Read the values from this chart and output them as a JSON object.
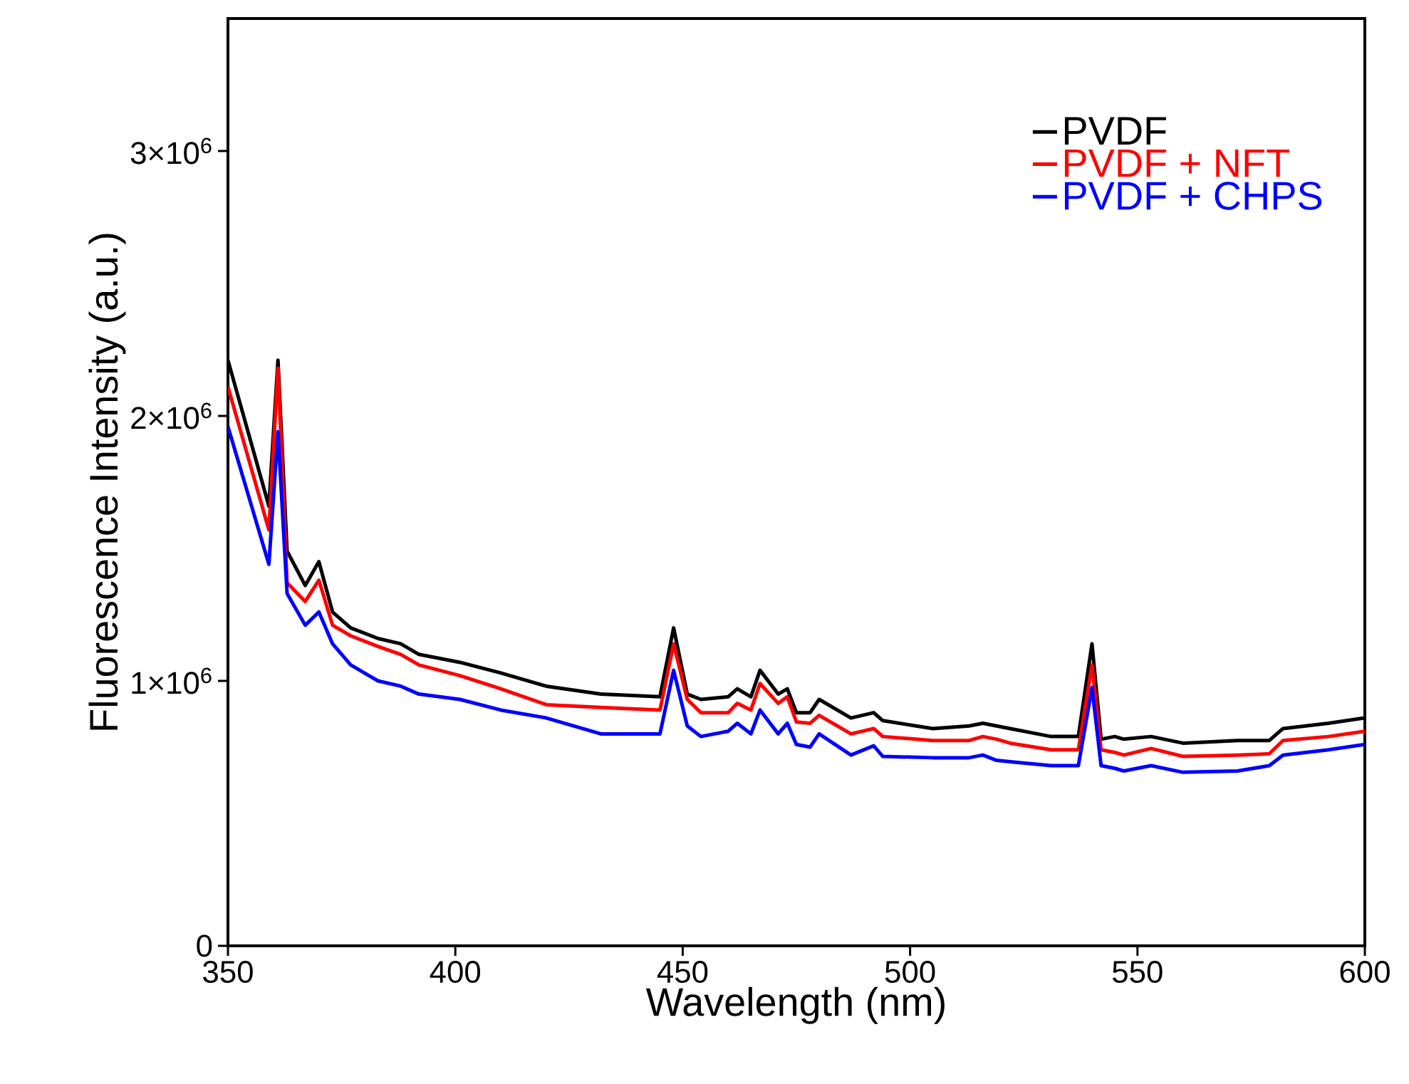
{
  "chart_data": {
    "type": "line",
    "xlabel": "Wavelength (nm)",
    "ylabel": "Fluorescence Intensity (a.u.)",
    "x": [
      350,
      359,
      361,
      363,
      367,
      370,
      373,
      377,
      383,
      388,
      392,
      401,
      410,
      420,
      432,
      445,
      448,
      451,
      454,
      460,
      462,
      465,
      467,
      471,
      473,
      475,
      478,
      480,
      487,
      492,
      494,
      505,
      513,
      516,
      519,
      522,
      531,
      537,
      540,
      542,
      545,
      547,
      553,
      560,
      572,
      579,
      582,
      592,
      600
    ],
    "series": [
      {
        "name": "PVDF",
        "color": "#000000",
        "values": [
          2210000,
          1660000,
          2210000,
          1490000,
          1360000,
          1450000,
          1260000,
          1200000,
          1160000,
          1140000,
          1100000,
          1070000,
          1030000,
          980000,
          950000,
          940000,
          1200000,
          950000,
          930000,
          940000,
          970000,
          940000,
          1040000,
          950000,
          970000,
          880000,
          880000,
          930000,
          860000,
          880000,
          850000,
          820000,
          830000,
          840000,
          830000,
          820000,
          790000,
          790000,
          1140000,
          780000,
          790000,
          780000,
          790000,
          765000,
          775000,
          775000,
          820000,
          840000,
          860000
        ]
      },
      {
        "name": "PVDF + NFT",
        "color": "#ff0000",
        "values": [
          2110000,
          1570000,
          2180000,
          1370000,
          1300000,
          1380000,
          1210000,
          1170000,
          1130000,
          1100000,
          1060000,
          1020000,
          970000,
          910000,
          900000,
          890000,
          1140000,
          930000,
          880000,
          880000,
          915000,
          890000,
          990000,
          915000,
          940000,
          845000,
          840000,
          870000,
          800000,
          820000,
          790000,
          775000,
          775000,
          790000,
          780000,
          765000,
          740000,
          740000,
          1060000,
          740000,
          730000,
          720000,
          745000,
          715000,
          720000,
          725000,
          775000,
          790000,
          810000
        ]
      },
      {
        "name": "PVDF + CHPS",
        "color": "#0000ff",
        "values": [
          1960000,
          1440000,
          1940000,
          1330000,
          1210000,
          1260000,
          1140000,
          1060000,
          1000000,
          980000,
          950000,
          930000,
          890000,
          860000,
          800000,
          800000,
          1040000,
          830000,
          790000,
          810000,
          840000,
          800000,
          890000,
          800000,
          840000,
          760000,
          750000,
          800000,
          720000,
          755000,
          715000,
          710000,
          710000,
          720000,
          700000,
          695000,
          680000,
          680000,
          975000,
          680000,
          670000,
          660000,
          680000,
          655000,
          660000,
          680000,
          720000,
          740000,
          760000
        ]
      }
    ],
    "xlim": [
      350,
      600
    ],
    "ylim": [
      0,
      3500000
    ],
    "xticks": [
      350,
      400,
      450,
      500,
      550,
      600
    ],
    "yticks": [
      0,
      {
        "value": 1000000,
        "label": "1×10$^{6}$"
      },
      {
        "value": 2000000,
        "label": "2×10$^{6}$"
      },
      {
        "value": 3000000,
        "label": "3×10$^{6}$"
      }
    ],
    "legend": "top right",
    "grid": false,
    "marker": "none",
    "line_style": "solid"
  }
}
